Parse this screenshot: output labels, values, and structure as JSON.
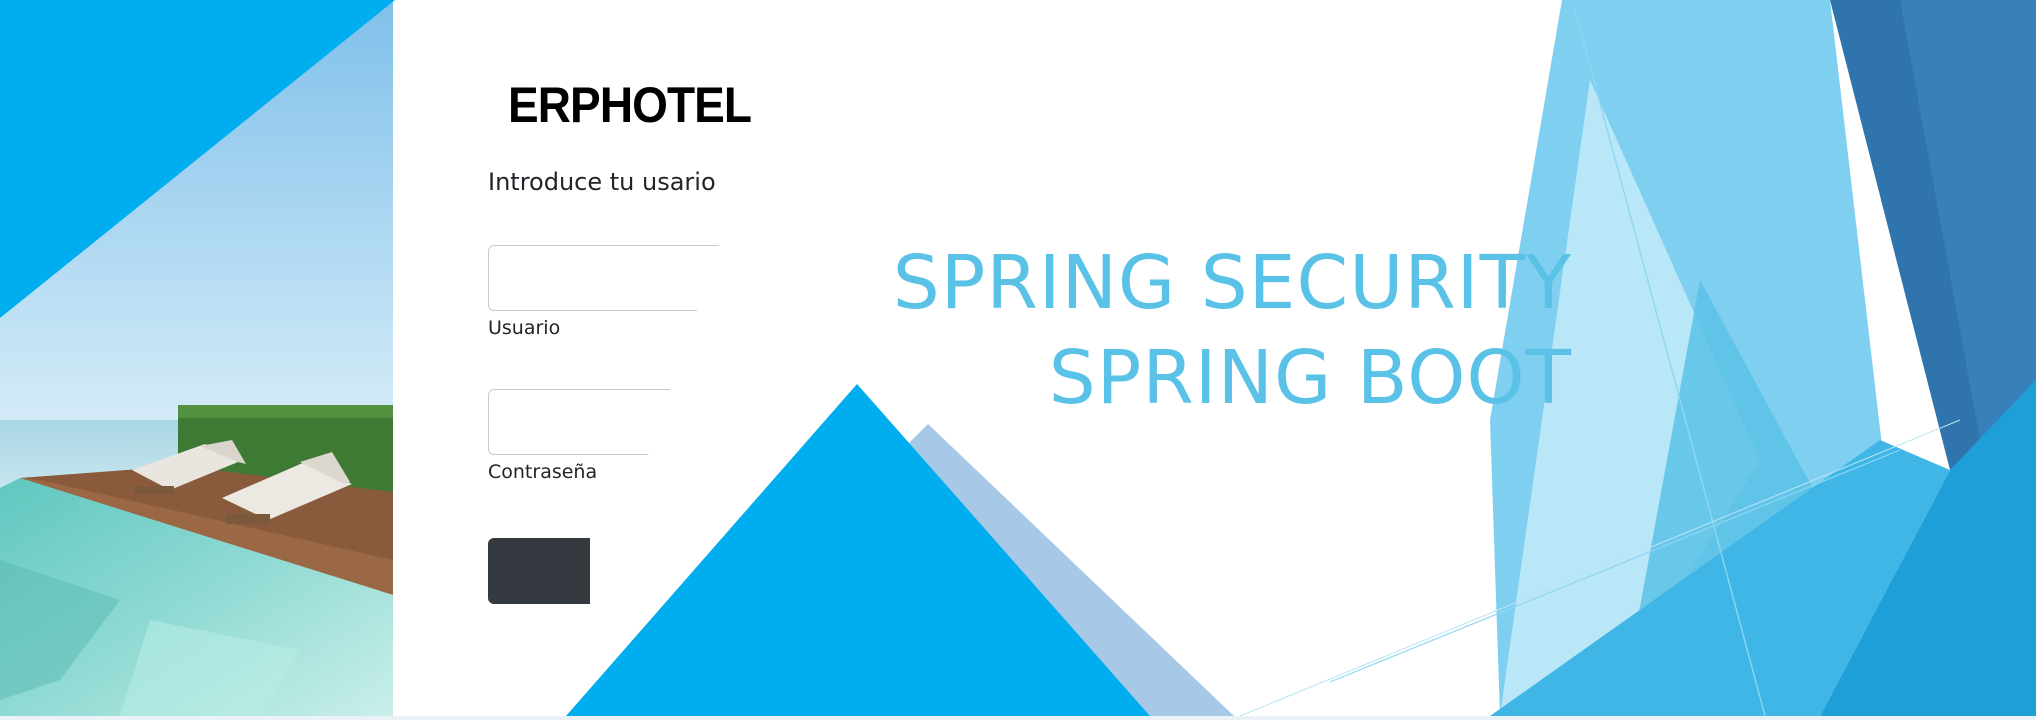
{
  "brand": {
    "title": "ERPHOTEL"
  },
  "login": {
    "prompt": "Introduce tu usario",
    "username": {
      "label": "Usuario",
      "value": ""
    },
    "password": {
      "label": "Contraseña",
      "value": ""
    },
    "submit_label": ""
  },
  "headline": {
    "line1": "SPRING SECURITY",
    "line2": "SPRING BOOT"
  },
  "colors": {
    "accent_blue": "#00aeef",
    "headline_blue": "#5bc2e7",
    "pale_blue": "#a8c8e8",
    "dark_blue": "#2a6fa8",
    "button_dark": "#343a40"
  }
}
